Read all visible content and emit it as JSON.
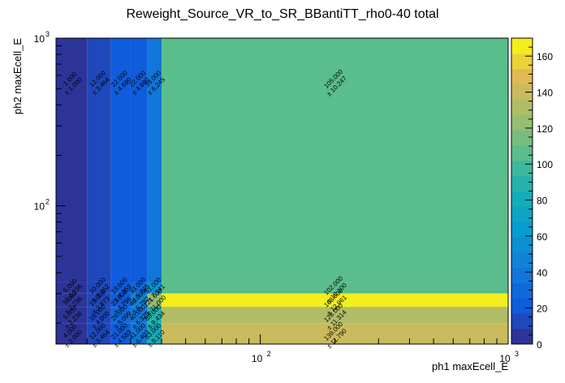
{
  "chart_data": {
    "type": "heatmap",
    "title": "Reweight_Source_VR_to_SR_BBantiTT_rho0-40 total",
    "xlabel": "ph1 maxEcell_E",
    "ylabel": "ph2 maxEcell_E",
    "x_scale": "log",
    "y_scale": "log",
    "xlim": [
      15,
      1000
    ],
    "ylim": [
      15,
      1000
    ],
    "x_tick_labels": [
      {
        "base": "10",
        "exp": "2",
        "value": 100
      },
      {
        "base": "10",
        "exp": "3",
        "value": 1000
      }
    ],
    "y_tick_labels": [
      {
        "base": "10",
        "exp": "2",
        "value": 100
      },
      {
        "base": "10",
        "exp": "3",
        "value": 1000
      }
    ],
    "x_bins": [
      15,
      20,
      25,
      30,
      35,
      40,
      1000
    ],
    "y_bins": [
      15,
      20,
      25,
      30,
      35,
      1000
    ],
    "cells": [
      {
        "x": 0,
        "y": 4,
        "value": 1,
        "error": 1
      },
      {
        "x": 1,
        "y": 4,
        "value": 12,
        "error": 3.464
      },
      {
        "x": 2,
        "y": 4,
        "value": 22,
        "error": 4.69
      },
      {
        "x": 3,
        "y": 4,
        "value": 22,
        "error": 4.69
      },
      {
        "x": 4,
        "y": 4,
        "value": 39,
        "error": 6.245
      },
      {
        "x": 5,
        "y": 4,
        "value": 105,
        "error": 10.247
      },
      {
        "x": 0,
        "y": 3,
        "value": 5,
        "error": 2.236
      },
      {
        "x": 1,
        "y": 3,
        "value": 10,
        "error": 3.162
      },
      {
        "x": 2,
        "y": 3,
        "value": 19,
        "error": 4.359
      },
      {
        "x": 3,
        "y": 3,
        "value": 33,
        "error": 5.745
      },
      {
        "x": 4,
        "y": 3,
        "value": 51,
        "error": 7.141
      },
      {
        "x": 5,
        "y": 3,
        "value": 102,
        "error": 10.1
      },
      {
        "x": 0,
        "y": 2,
        "value": 5,
        "error": 2.236
      },
      {
        "x": 1,
        "y": 2,
        "value": 15,
        "error": 3.873
      },
      {
        "x": 2,
        "y": 2,
        "value": 23,
        "error": 4.796
      },
      {
        "x": 3,
        "y": 2,
        "value": 46,
        "error": 6.782
      },
      {
        "x": 4,
        "y": 2,
        "value": 121,
        "error": 11.0
      },
      {
        "x": 5,
        "y": 2,
        "value": 168,
        "error": 12.961
      },
      {
        "x": 0,
        "y": 1,
        "value": 5,
        "error": 2.236
      },
      {
        "x": 1,
        "y": 1,
        "value": 16,
        "error": 4.0
      },
      {
        "x": 2,
        "y": 1,
        "value": 26,
        "error": 5.099
      },
      {
        "x": 3,
        "y": 1,
        "value": 40,
        "error": 6.325
      },
      {
        "x": 4,
        "y": 1,
        "value": 89,
        "error": 9.434
      },
      {
        "x": 5,
        "y": 1,
        "value": 128,
        "error": 11.314
      },
      {
        "x": 0,
        "y": 0,
        "value": 4,
        "error": 2.0
      },
      {
        "x": 1,
        "y": 0,
        "value": 12,
        "error": 3.464
      },
      {
        "x": 2,
        "y": 0,
        "value": 21,
        "error": 4.583
      },
      {
        "x": 3,
        "y": 0,
        "value": 41,
        "error": 6.403
      },
      {
        "x": 4,
        "y": 0,
        "value": 83,
        "error": 9.11
      },
      {
        "x": 5,
        "y": 0,
        "value": 139,
        "error": 11.79
      }
    ],
    "colorbar": {
      "min": 0,
      "max": 170,
      "ticks": [
        0,
        20,
        40,
        60,
        80,
        100,
        120,
        140,
        160
      ],
      "levels": 20
    },
    "grid": false,
    "legend": "none"
  }
}
